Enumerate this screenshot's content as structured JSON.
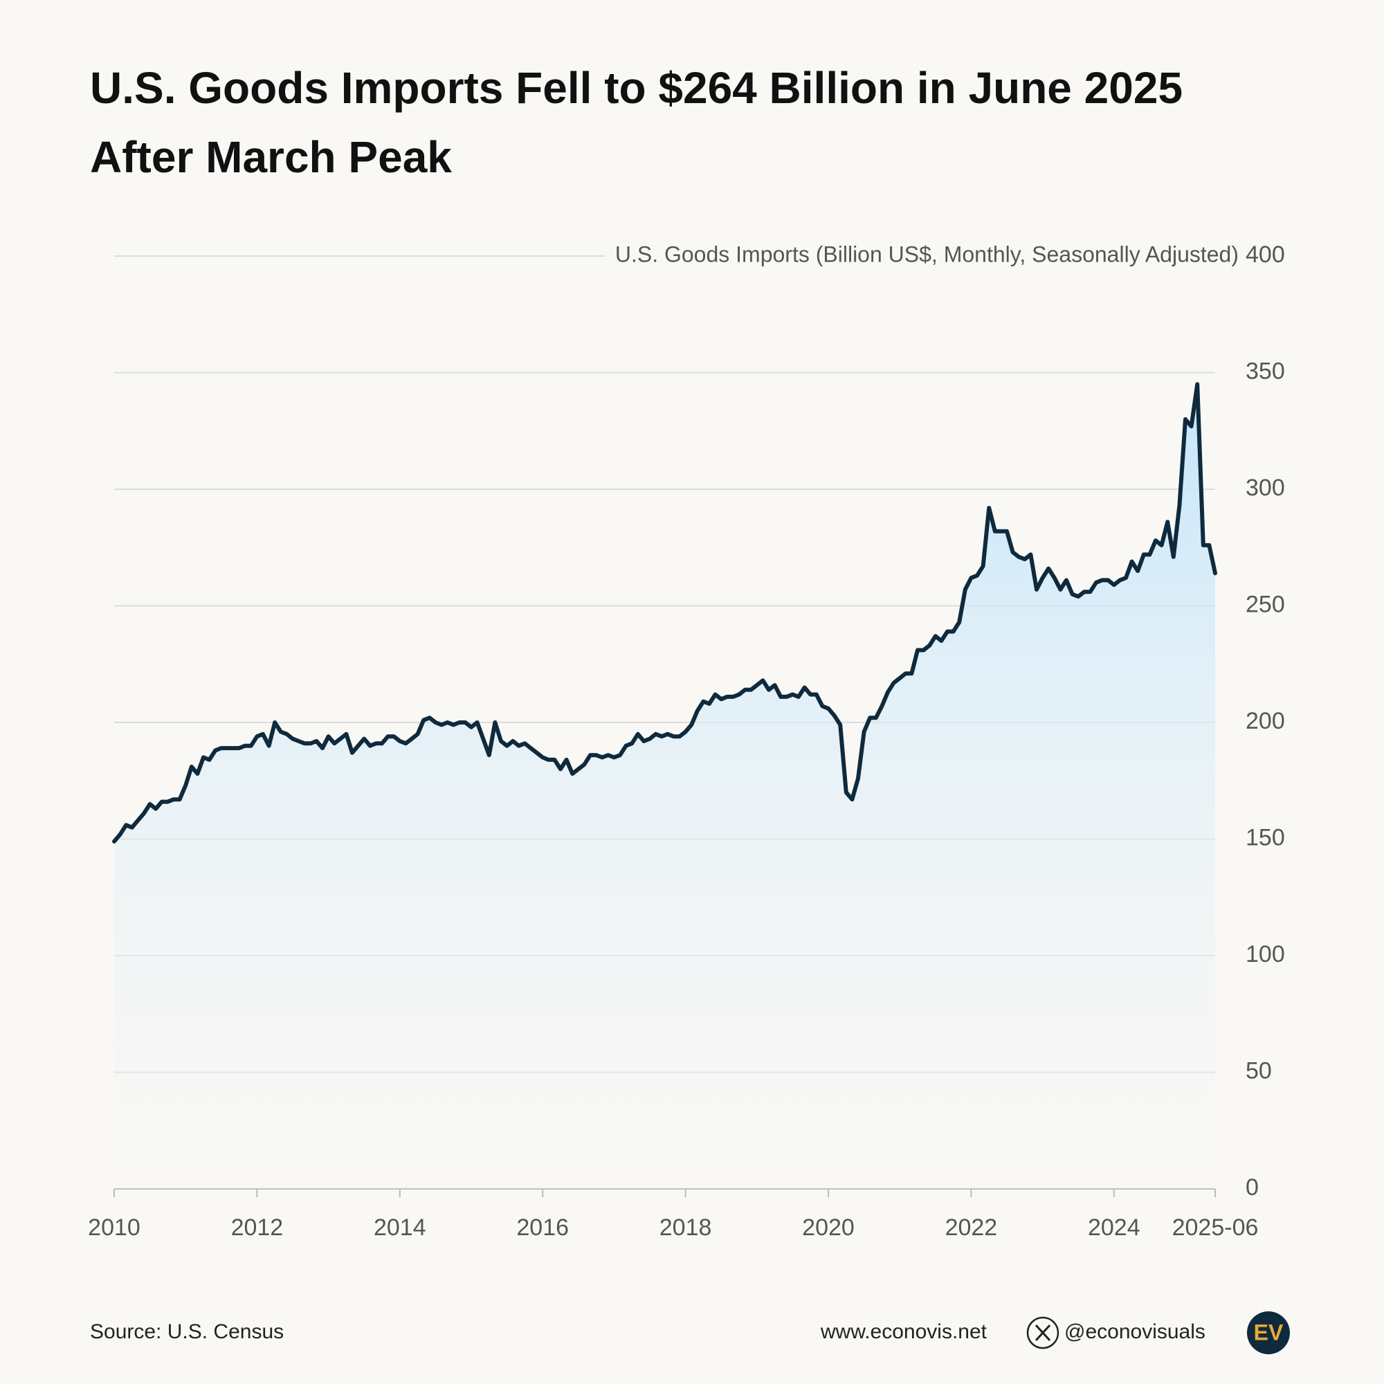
{
  "chart_data": {
    "type": "line",
    "title": [
      "U.S. Goods Imports Fell to $264 Billion in June 2025",
      "After March Peak"
    ],
    "y_axis_label": "U.S. Goods Imports (Billion US$, Monthly, Seasonally Adjusted)",
    "source": "Source: U.S. Census",
    "x": [
      "2010-01",
      "2010-02",
      "2010-03",
      "2010-04",
      "2010-05",
      "2010-06",
      "2010-07",
      "2010-08",
      "2010-09",
      "2010-10",
      "2010-11",
      "2010-12",
      "2011-01",
      "2011-02",
      "2011-03",
      "2011-04",
      "2011-05",
      "2011-06",
      "2011-07",
      "2011-08",
      "2011-09",
      "2011-10",
      "2011-11",
      "2011-12",
      "2012-01",
      "2012-02",
      "2012-03",
      "2012-04",
      "2012-05",
      "2012-06",
      "2012-07",
      "2012-08",
      "2012-09",
      "2012-10",
      "2012-11",
      "2012-12",
      "2013-01",
      "2013-02",
      "2013-03",
      "2013-04",
      "2013-05",
      "2013-06",
      "2013-07",
      "2013-08",
      "2013-09",
      "2013-10",
      "2013-11",
      "2013-12",
      "2014-01",
      "2014-02",
      "2014-03",
      "2014-04",
      "2014-05",
      "2014-06",
      "2014-07",
      "2014-08",
      "2014-09",
      "2014-10",
      "2014-11",
      "2014-12",
      "2015-01",
      "2015-02",
      "2015-03",
      "2015-04",
      "2015-05",
      "2015-06",
      "2015-07",
      "2015-08",
      "2015-09",
      "2015-10",
      "2015-11",
      "2015-12",
      "2016-01",
      "2016-02",
      "2016-03",
      "2016-04",
      "2016-05",
      "2016-06",
      "2016-07",
      "2016-08",
      "2016-09",
      "2016-10",
      "2016-11",
      "2016-12",
      "2017-01",
      "2017-02",
      "2017-03",
      "2017-04",
      "2017-05",
      "2017-06",
      "2017-07",
      "2017-08",
      "2017-09",
      "2017-10",
      "2017-11",
      "2017-12",
      "2018-01",
      "2018-02",
      "2018-03",
      "2018-04",
      "2018-05",
      "2018-06",
      "2018-07",
      "2018-08",
      "2018-09",
      "2018-10",
      "2018-11",
      "2018-12",
      "2019-01",
      "2019-02",
      "2019-03",
      "2019-04",
      "2019-05",
      "2019-06",
      "2019-07",
      "2019-08",
      "2019-09",
      "2019-10",
      "2019-11",
      "2019-12",
      "2020-01",
      "2020-02",
      "2020-03",
      "2020-04",
      "2020-05",
      "2020-06",
      "2020-07",
      "2020-08",
      "2020-09",
      "2020-10",
      "2020-11",
      "2020-12",
      "2021-01",
      "2021-02",
      "2021-03",
      "2021-04",
      "2021-05",
      "2021-06",
      "2021-07",
      "2021-08",
      "2021-09",
      "2021-10",
      "2021-11",
      "2021-12",
      "2022-01",
      "2022-02",
      "2022-03",
      "2022-04",
      "2022-05",
      "2022-06",
      "2022-07",
      "2022-08",
      "2022-09",
      "2022-10",
      "2022-11",
      "2022-12",
      "2023-01",
      "2023-02",
      "2023-03",
      "2023-04",
      "2023-05",
      "2023-06",
      "2023-07",
      "2023-08",
      "2023-09",
      "2023-10",
      "2023-11",
      "2023-12",
      "2024-01",
      "2024-02",
      "2024-03",
      "2024-04",
      "2024-05",
      "2024-06",
      "2024-07",
      "2024-08",
      "2024-09",
      "2024-10",
      "2024-11",
      "2024-12",
      "2025-01",
      "2025-02",
      "2025-03",
      "2025-04",
      "2025-05",
      "2025-06"
    ],
    "series": [
      {
        "name": "U.S. Goods Imports",
        "color": "#0f2a3d",
        "values": [
          149,
          152,
          156,
          155,
          158,
          161,
          165,
          163,
          166,
          166,
          167,
          167,
          173,
          181,
          178,
          185,
          184,
          188,
          189,
          189,
          189,
          189,
          190,
          190,
          194,
          195,
          190,
          200,
          196,
          195,
          193,
          192,
          191,
          191,
          192,
          189,
          194,
          191,
          193,
          195,
          187,
          190,
          193,
          190,
          191,
          191,
          194,
          194,
          192,
          191,
          193,
          195,
          201,
          202,
          200,
          199,
          200,
          199,
          200,
          200,
          198,
          200,
          193,
          186,
          200,
          192,
          190,
          192,
          190,
          191,
          189,
          187,
          185,
          184,
          184,
          180,
          184,
          178,
          180,
          182,
          186,
          186,
          185,
          186,
          185,
          186,
          190,
          191,
          195,
          192,
          193,
          195,
          194,
          195,
          194,
          194,
          196,
          199,
          205,
          209,
          208,
          212,
          210,
          211,
          211,
          212,
          214,
          214,
          216,
          218,
          214,
          216,
          211,
          211,
          212,
          211,
          215,
          212,
          212,
          207,
          206,
          203,
          199,
          170,
          167,
          176,
          196,
          202,
          202,
          207,
          213,
          217,
          219,
          221,
          221,
          231,
          231,
          233,
          237,
          235,
          239,
          239,
          243,
          257,
          262,
          263,
          267,
          292,
          282,
          282,
          282,
          273,
          271,
          270,
          272,
          257,
          262,
          266,
          262,
          257,
          261,
          255,
          254,
          256,
          256,
          260,
          261,
          261,
          259,
          261,
          262,
          269,
          265,
          272,
          272,
          278,
          276,
          286,
          271,
          293,
          330,
          327,
          345,
          276,
          276,
          264
        ]
      }
    ],
    "xlim": [
      "2010-01",
      "2025-06"
    ],
    "xticks": [
      {
        "value": "2010-01",
        "label": "2010"
      },
      {
        "value": "2012-01",
        "label": "2012"
      },
      {
        "value": "2014-01",
        "label": "2014"
      },
      {
        "value": "2016-01",
        "label": "2016"
      },
      {
        "value": "2018-01",
        "label": "2018"
      },
      {
        "value": "2020-01",
        "label": "2020"
      },
      {
        "value": "2022-01",
        "label": "2022"
      },
      {
        "value": "2024-01",
        "label": "2024"
      },
      {
        "value": "2025-06",
        "label": "2025-06"
      }
    ],
    "ylim": [
      0,
      400
    ],
    "yticks": [
      0,
      50,
      100,
      150,
      200,
      250,
      300,
      350,
      400
    ],
    "grid": true
  },
  "footer": {
    "website": "www.econovis.net",
    "handle": "@econovisuals",
    "logo": "EV"
  }
}
